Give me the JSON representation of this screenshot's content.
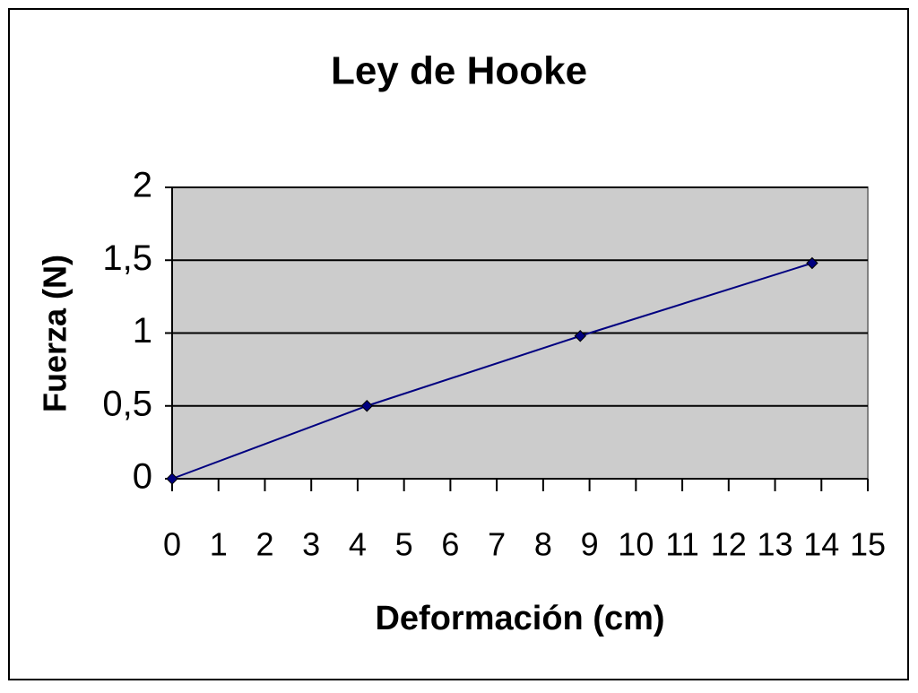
{
  "chart_data": {
    "type": "line",
    "title": "Ley de Hooke",
    "x_label": "Deformación (cm)",
    "y_label": "Fuerza (N)",
    "x": [
      0,
      4.2,
      8.8,
      13.8
    ],
    "values": [
      0,
      0.5,
      0.98,
      1.48
    ],
    "color": "#000080",
    "xlim": [
      0,
      15
    ],
    "xticks": [
      0,
      1,
      2,
      3,
      4,
      5,
      6,
      7,
      8,
      9,
      10,
      11,
      12,
      13,
      14,
      15
    ],
    "ylim": [
      0,
      2
    ],
    "yticks": [
      0,
      {
        "value": 0.5,
        "label": "0,5"
      },
      1,
      {
        "value": 1.5,
        "label": "1,5"
      },
      2
    ],
    "grid": true,
    "plot_background": "#cccccc"
  }
}
